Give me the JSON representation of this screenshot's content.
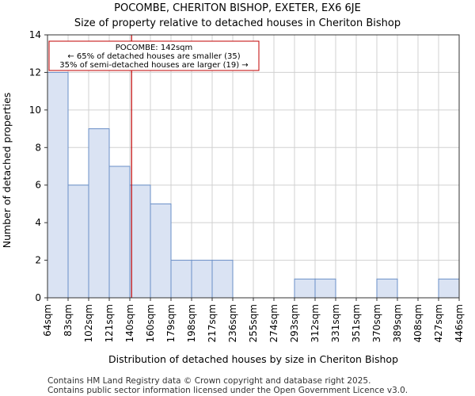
{
  "chart_data": {
    "type": "bar",
    "title_line1": "POCOMBE, CHERITON BISHOP, EXETER, EX6 6JE",
    "title_line2": "Size of property relative to detached houses in Cheriton Bishop",
    "xlabel": "Distribution of detached houses by size in Cheriton Bishop",
    "ylabel": "Number of detached properties",
    "bin_edges": [
      64,
      83,
      102,
      121,
      140,
      160,
      179,
      198,
      217,
      236,
      255,
      274,
      293,
      312,
      331,
      351,
      370,
      389,
      408,
      427,
      446
    ],
    "tick_labels": [
      "64sqm",
      "83sqm",
      "102sqm",
      "121sqm",
      "140sqm",
      "160sqm",
      "179sqm",
      "198sqm",
      "217sqm",
      "236sqm",
      "255sqm",
      "274sqm",
      "293sqm",
      "312sqm",
      "331sqm",
      "351sqm",
      "370sqm",
      "389sqm",
      "408sqm",
      "427sqm",
      "446sqm"
    ],
    "values": [
      12,
      6,
      9,
      7,
      6,
      5,
      2,
      2,
      2,
      0,
      0,
      0,
      1,
      1,
      0,
      0,
      1,
      0,
      0,
      1
    ],
    "ylim": [
      0,
      14
    ],
    "yticks": [
      0,
      2,
      4,
      6,
      8,
      10,
      12,
      14
    ],
    "grid": true,
    "bar_color": "#dae3f3",
    "bar_edge_color": "#6a8fc7",
    "marker": {
      "value": 142,
      "color": "#c00000",
      "label_line1": "POCOMBE: 142sqm",
      "label_line2": "← 65% of detached houses are smaller (35)",
      "label_line3": "35% of semi-detached houses are larger (19) →"
    }
  },
  "footer": {
    "line1": "Contains HM Land Registry data © Crown copyright and database right 2025.",
    "line2": "Contains public sector information licensed under the Open Government Licence v3.0."
  }
}
